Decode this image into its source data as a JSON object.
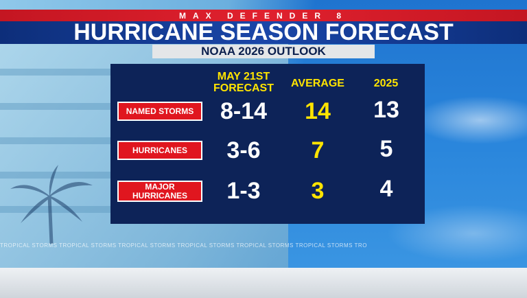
{
  "header": {
    "brand": "MAX DEFENDER 8",
    "title": "HURRICANE SEASON FORECAST",
    "subtitle": "NOAA 2026 OUTLOOK"
  },
  "table": {
    "columns": [
      "MAY 21ST FORECAST",
      "AVERAGE",
      "2025"
    ],
    "column_lines": [
      [
        "MAY 21ST",
        "FORECAST"
      ],
      [
        "AVERAGE"
      ],
      [
        "2025"
      ]
    ],
    "rows": [
      {
        "label": "NAMED STORMS",
        "label_lines": [
          "NAMED STORMS"
        ],
        "forecast": "8-14",
        "average": "14",
        "y2025": "13"
      },
      {
        "label": "HURRICANES",
        "label_lines": [
          "HURRICANES"
        ],
        "forecast": "3-6",
        "average": "7",
        "y2025": "5"
      },
      {
        "label": "MAJOR HURRICANES",
        "label_lines": [
          "MAJOR",
          "HURRICANES"
        ],
        "forecast": "1-3",
        "average": "3",
        "y2025": "4"
      }
    ]
  },
  "background": {
    "ticker_text": "TROPICAL STORMS TROPICAL STORMS TROPICAL STORMS TROPICAL STORMS TROPICAL STORMS TROPICAL STORMS TRO"
  },
  "colors": {
    "header_red": "#e0212e",
    "header_blue": "#1a46a8",
    "panel_navy": "#0d2358",
    "highlight_yellow": "#ffe400",
    "label_red": "#e0161f"
  }
}
